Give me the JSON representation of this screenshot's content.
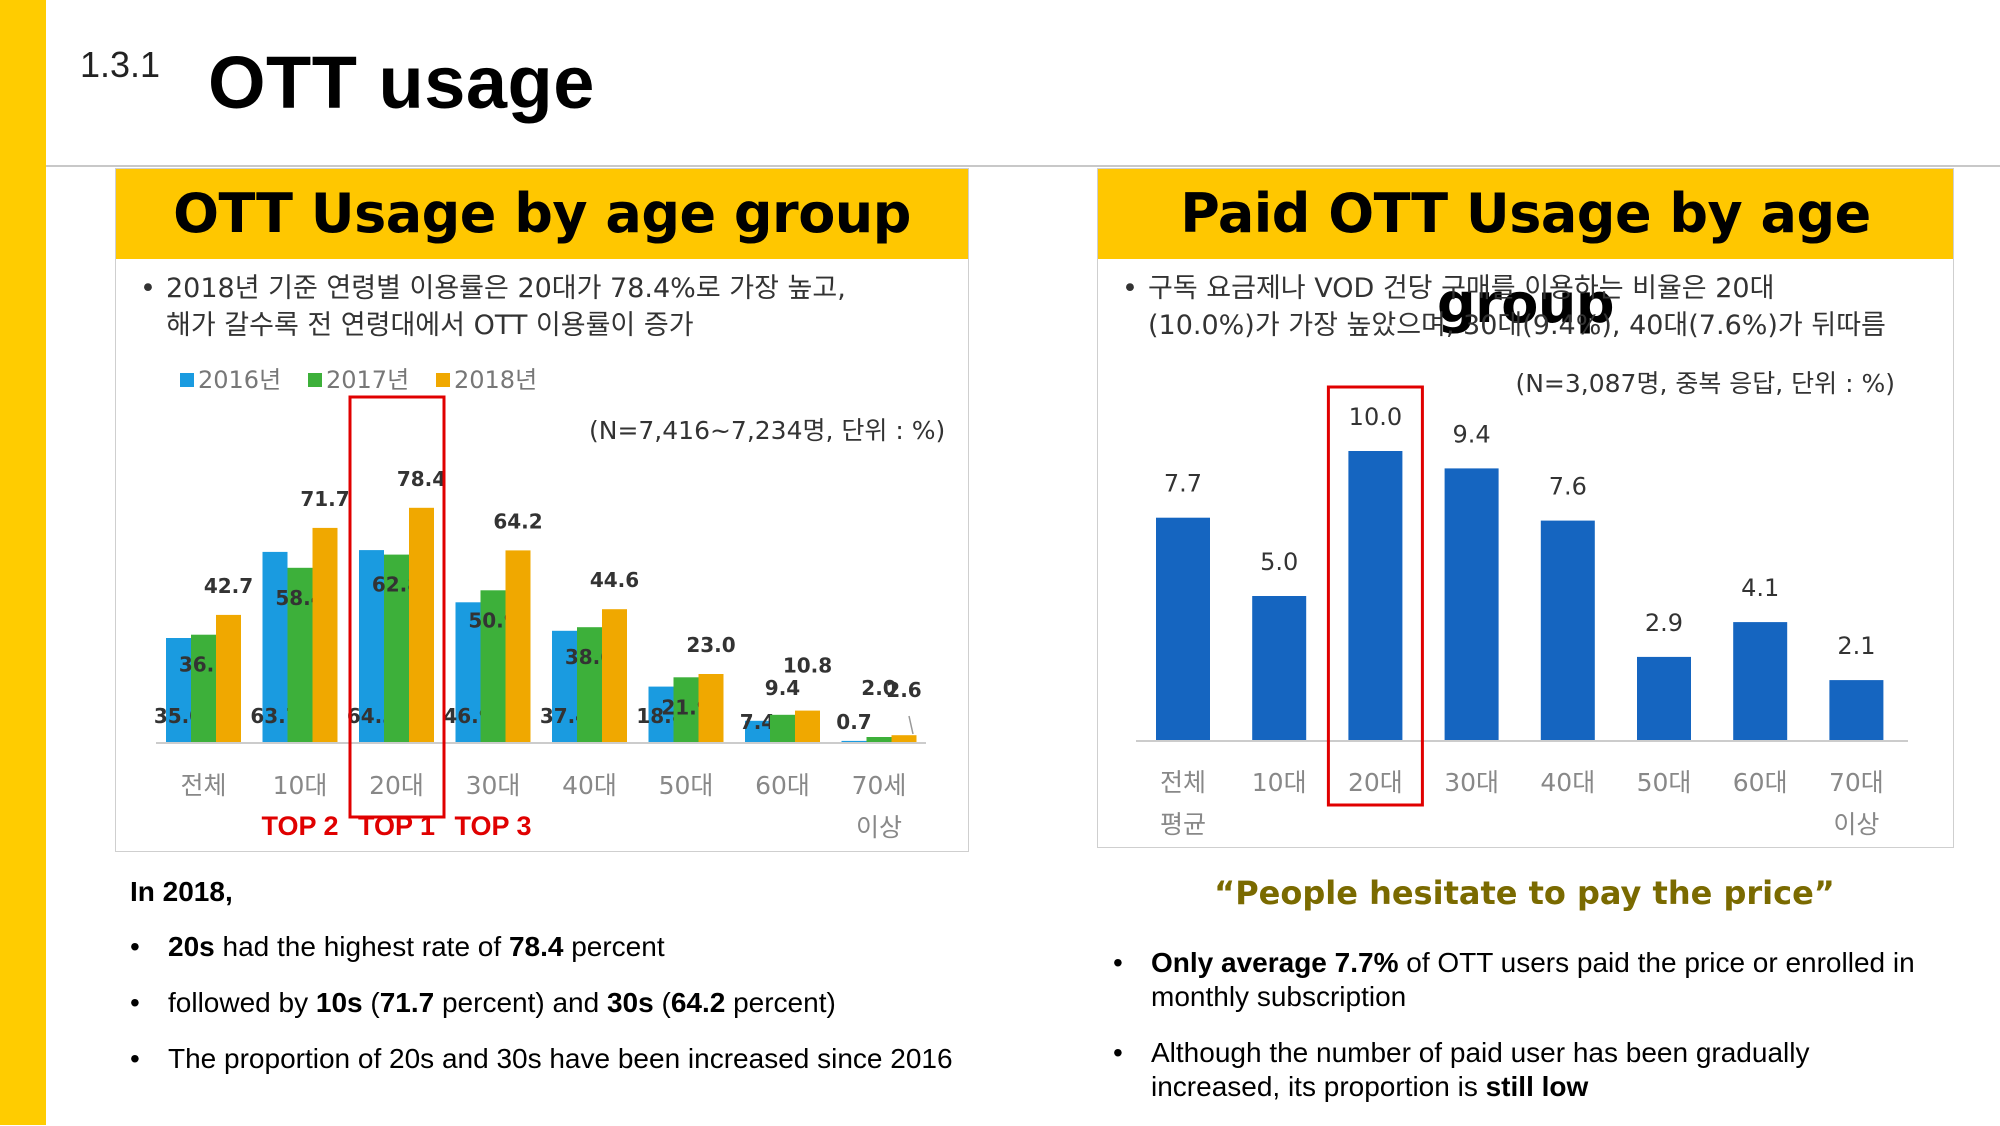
{
  "slide": {
    "section_number": "1.3.1",
    "title": "OTT usage"
  },
  "left_panel": {
    "heading": "OTT Usage by age group",
    "note_bullet": "•",
    "note_lines": [
      "2018년 기준 연령별 이용률은 20대가 78.4%로 가장 높고,",
      "해가 갈수록 전 연령대에서 OTT 이용률이 증가"
    ],
    "sample_note": "(N=7,416~7,234명, 단위 : %)",
    "top_labels": [
      "TOP 2",
      "TOP 1",
      "TOP 3"
    ],
    "top_label_color": "#e00000",
    "highlight_color": "#e00000"
  },
  "right_panel": {
    "heading": "Paid OTT Usage by age group",
    "note_bullet": "•",
    "note_lines": [
      "구독 요금제나 VOD 건당 구매를 이용하는 비율은 20대",
      "(10.0%)가 가장 높았으며, 30대(9.4%), 40대(7.6%)가 뒤따름"
    ],
    "sample_note": "(N=3,087명, 중복 응답, 단위 : %)",
    "highlight_color": "#e00000"
  },
  "chart_data": [
    {
      "type": "bar",
      "categories": [
        "전체",
        "10대",
        "20대",
        "30대",
        "40대",
        "50대",
        "60대",
        "70세|이상"
      ],
      "series": [
        {
          "name": "2016년",
          "color": "#1a9be0",
          "values": [
            35.0,
            63.7,
            64.3,
            46.9,
            37.4,
            18.8,
            7.4,
            0.7
          ]
        },
        {
          "name": "2017년",
          "color": "#3db03a",
          "values": [
            36.1,
            58.4,
            62.8,
            50.9,
            38.6,
            21.9,
            9.4,
            2.0
          ]
        },
        {
          "name": "2018년",
          "color": "#f0a800",
          "values": [
            42.7,
            71.7,
            78.4,
            64.2,
            44.6,
            23.0,
            10.8,
            2.6
          ]
        }
      ],
      "ylim": [
        0,
        100
      ],
      "legend": "top-left",
      "grid": false,
      "highlighted_category": "20대"
    },
    {
      "type": "bar",
      "categories": [
        "전체|평균",
        "10대",
        "20대",
        "30대",
        "40대",
        "50대",
        "60대",
        "70대|이상"
      ],
      "series": [
        {
          "color": "#1565c0",
          "values": [
            7.7,
            5.0,
            10.0,
            9.4,
            7.6,
            2.9,
            4.1,
            2.1
          ]
        }
      ],
      "ylim": [
        0,
        12
      ],
      "grid": false,
      "highlighted_category": "20대"
    }
  ],
  "summary_left": {
    "heading": "In 2018,",
    "bullet": "•",
    "items": [
      [
        {
          "t": "20s",
          "b": true
        },
        {
          "t": " had the highest rate of ",
          "b": false
        },
        {
          "t": "78.4",
          "b": true
        },
        {
          "t": " percent",
          "b": false
        }
      ],
      [
        {
          "t": "followed by ",
          "b": false
        },
        {
          "t": "10s",
          "b": true
        },
        {
          "t": " (",
          "b": false
        },
        {
          "t": "71.7",
          "b": true
        },
        {
          "t": " percent) and ",
          "b": false
        },
        {
          "t": "30s",
          "b": true
        },
        {
          "t": " (",
          "b": false
        },
        {
          "t": "64.2",
          "b": true
        },
        {
          "t": " percent)",
          "b": false
        }
      ],
      [
        {
          "t": "The proportion of 20s and 30s have been increased since 2016",
          "b": false
        }
      ]
    ]
  },
  "summary_right": {
    "quote": "“People hesitate to pay the price”",
    "bullet": "•",
    "items": [
      [
        {
          "t": "Only average 7.7%",
          "b": true
        },
        {
          "t": " of OTT users paid the price or enrolled in monthly subscription",
          "b": false
        }
      ],
      [
        {
          "t": "Although the number of paid user has been gradually increased, its proportion is ",
          "b": false
        },
        {
          "t": "still low",
          "b": true
        }
      ]
    ]
  },
  "colors": {
    "accent_yellow": "#ffcc00",
    "panel_header": "#ffc700",
    "quote_text": "#7a6a00"
  }
}
